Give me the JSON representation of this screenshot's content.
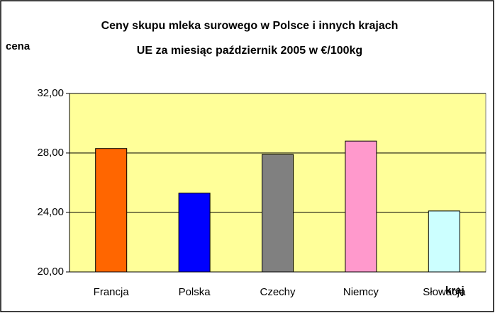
{
  "chart_data": {
    "type": "bar",
    "title": [
      "Ceny skupu mleka surowego w Polsce i innych krajach",
      "UE za miesiąc październik 2005 w €/100kg"
    ],
    "y_label": "cena",
    "x_label": "kraj",
    "categories": [
      "Francja",
      "Polska",
      "Czechy",
      "Niemcy",
      "Słowacja"
    ],
    "values": [
      28.3,
      25.3,
      27.9,
      28.8,
      24.1
    ],
    "colors": [
      "#ff6600",
      "#0000ff",
      "#808080",
      "#ff99cc",
      "#ccffff"
    ],
    "ylim": [
      20,
      32
    ],
    "yticks": [
      {
        "value": 20,
        "label": "20,00"
      },
      {
        "value": 24,
        "label": "24,00"
      },
      {
        "value": 28,
        "label": "28,00"
      },
      {
        "value": 32,
        "label": "32,00"
      }
    ],
    "grid": true
  }
}
